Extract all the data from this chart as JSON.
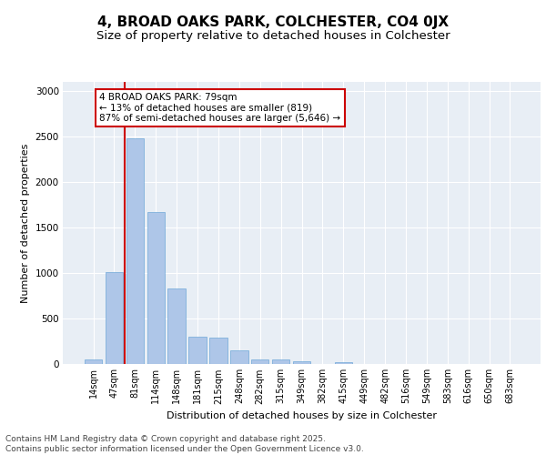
{
  "title": "4, BROAD OAKS PARK, COLCHESTER, CO4 0JX",
  "subtitle": "Size of property relative to detached houses in Colchester",
  "xlabel": "Distribution of detached houses by size in Colchester",
  "ylabel": "Number of detached properties",
  "bar_labels": [
    "14sqm",
    "47sqm",
    "81sqm",
    "114sqm",
    "148sqm",
    "181sqm",
    "215sqm",
    "248sqm",
    "282sqm",
    "315sqm",
    "349sqm",
    "382sqm",
    "415sqm",
    "449sqm",
    "482sqm",
    "516sqm",
    "549sqm",
    "583sqm",
    "616sqm",
    "650sqm",
    "683sqm"
  ],
  "bar_values": [
    50,
    1010,
    2480,
    1670,
    830,
    300,
    295,
    155,
    55,
    50,
    35,
    0,
    20,
    0,
    0,
    0,
    0,
    0,
    0,
    0,
    0
  ],
  "bar_color": "#aec6e8",
  "bar_edge_color": "#6fa8d8",
  "vline_color": "#cc0000",
  "vline_x": 1.5,
  "annotation_text": "4 BROAD OAKS PARK: 79sqm\n← 13% of detached houses are smaller (819)\n87% of semi-detached houses are larger (5,646) →",
  "annotation_box_edgecolor": "#cc0000",
  "ylim": [
    0,
    3100
  ],
  "yticks": [
    0,
    500,
    1000,
    1500,
    2000,
    2500,
    3000
  ],
  "background_color": "#e8eef5",
  "grid_color": "#ffffff",
  "footer_text": "Contains HM Land Registry data © Crown copyright and database right 2025.\nContains public sector information licensed under the Open Government Licence v3.0.",
  "title_fontsize": 11,
  "subtitle_fontsize": 9.5,
  "axis_label_fontsize": 8,
  "tick_fontsize": 7,
  "ann_fontsize": 7.5,
  "footer_fontsize": 6.5
}
